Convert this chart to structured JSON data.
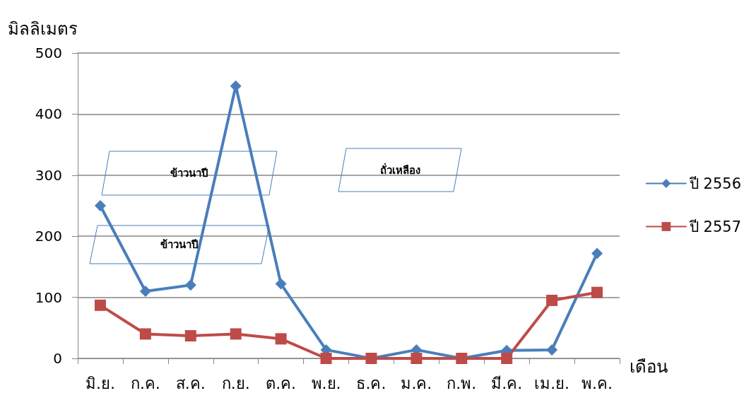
{
  "chart_data": {
    "type": "line",
    "ylabel": "มิลลิเมตร",
    "xlabel": "เดือน",
    "categories": [
      "มิ.ย.",
      "ก.ค.",
      "ส.ค.",
      "ก.ย.",
      "ต.ค.",
      "พ.ย.",
      "ธ.ค.",
      "ม.ค.",
      "ก.พ.",
      "มี.ค.",
      "เม.ย.",
      "พ.ค."
    ],
    "series": [
      {
        "name": "ปี 2556",
        "color": "#4a7ebb",
        "marker": "diamond",
        "values": [
          250,
          110,
          120,
          446,
          122,
          14,
          0,
          14,
          0,
          13,
          14,
          172
        ]
      },
      {
        "name": "ปี 2557",
        "color": "#be4b48",
        "marker": "square",
        "values": [
          87,
          40,
          37,
          40,
          32,
          0,
          0,
          0,
          0,
          0,
          95,
          108
        ]
      }
    ],
    "ylim": [
      0,
      500
    ],
    "yticks": [
      0,
      100,
      200,
      300,
      400,
      500
    ],
    "grid": "y",
    "legend": "right",
    "line_style": "solid",
    "annotations": [
      "ข้าวนาปี",
      "ถั่วเหลือง",
      "ข้าวนาปี"
    ]
  }
}
